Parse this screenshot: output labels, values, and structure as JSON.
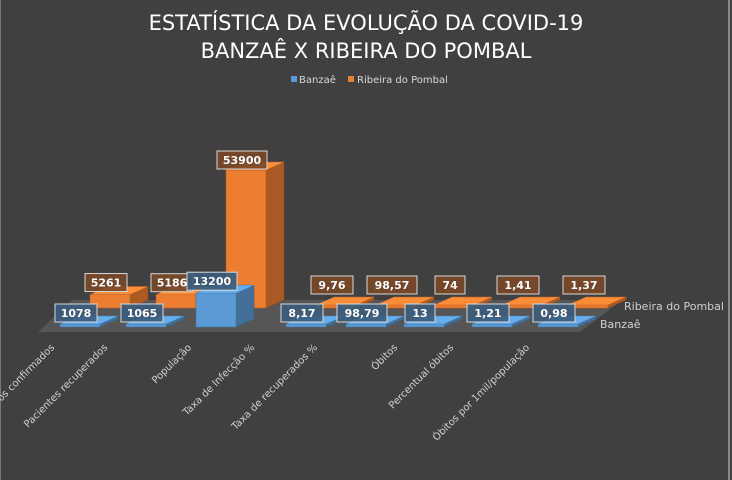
{
  "chart_data": {
    "type": "bar",
    "variant": "3d-column",
    "title": "ESTATÍSTICA DA EVOLUÇÃO DA COVID-19",
    "subtitle": "BANZAÊ X RIBEIRA DO POMBAL",
    "legend_position": "top",
    "grid": false,
    "categories": [
      "Casos confirmados",
      "Pacientes recuperados",
      "População",
      "Taxa de Infecção %",
      "Taxa de recuperados %",
      "Óbitos",
      "Percentual óbitos",
      "Óbitos por 1mil/população"
    ],
    "series": [
      {
        "name": "Banzaê",
        "color": "#5b9bd5",
        "values": [
          1078,
          1065,
          13200,
          8.17,
          98.79,
          13,
          1.21,
          0.98
        ],
        "labels": [
          "1078",
          "1065",
          "13200",
          "8,17",
          "98,79",
          "13",
          "1,21",
          "0,98"
        ]
      },
      {
        "name": "Ribeira do Pombal",
        "color": "#ed7d31",
        "values": [
          5261,
          5186,
          53900,
          9.76,
          98.57,
          74,
          1.41,
          1.37
        ],
        "labels": [
          "5261",
          "5186",
          "53900",
          "9,76",
          "98,57",
          "74",
          "1,41",
          "1,37"
        ]
      }
    ],
    "depth_axis_labels": [
      "Ribeira do Pombal",
      "Banzaê"
    ],
    "background": "#404040"
  }
}
